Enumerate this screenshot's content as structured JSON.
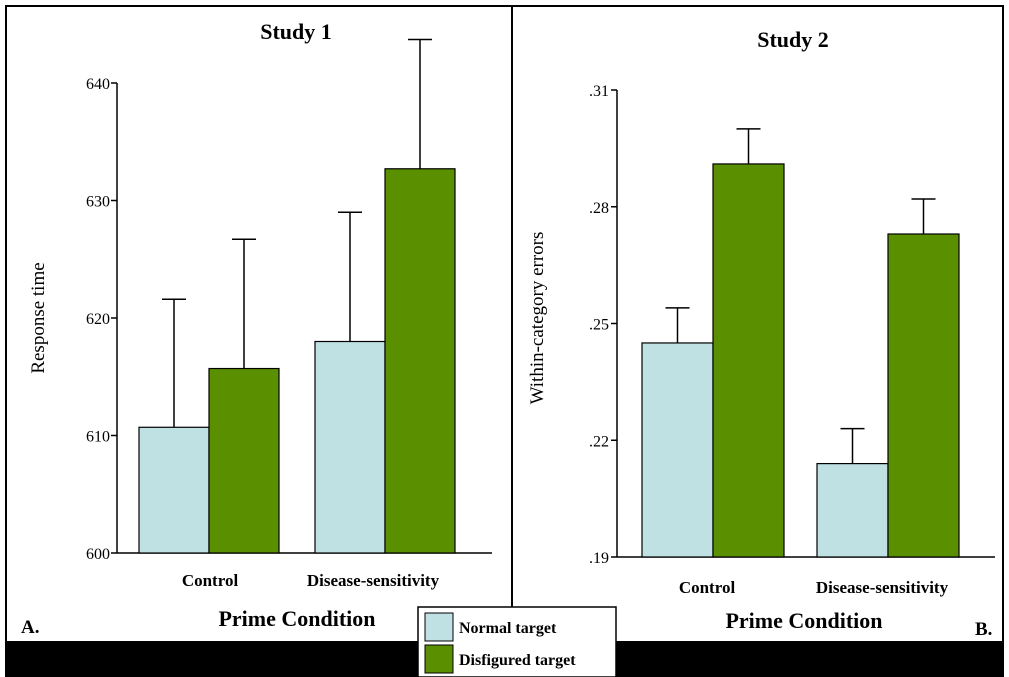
{
  "colors": {
    "normal": "#bfe1e4",
    "disfigured": "#5a9000",
    "frame": "#000000"
  },
  "legend": {
    "items": [
      "Normal target",
      "Disfigured target"
    ]
  },
  "chart_data": [
    {
      "type": "bar",
      "panel_label": "A.",
      "title": "Study 1",
      "xlabel": "Prime Condition",
      "ylabel": "Response time",
      "ylim": [
        600,
        640
      ],
      "yticks": [
        600,
        610,
        620,
        630,
        640
      ],
      "ytick_labels": [
        "600",
        "610",
        "620",
        "630",
        "640"
      ],
      "categories": [
        "Control",
        "Disease-sensitivity"
      ],
      "series": [
        {
          "name": "Normal target",
          "values": [
            610.7,
            618.0
          ],
          "errors": [
            10.9,
            11.0
          ]
        },
        {
          "name": "Disfigured target",
          "values": [
            615.7,
            632.7
          ],
          "errors": [
            11.0,
            11.0
          ]
        }
      ]
    },
    {
      "type": "bar",
      "panel_label": "B.",
      "title": "Study 2",
      "xlabel": "Prime Condition",
      "ylabel": "Within-category errors",
      "ylim": [
        0.19,
        0.31
      ],
      "yticks": [
        0.19,
        0.22,
        0.25,
        0.28,
        0.31
      ],
      "ytick_labels": [
        ".19",
        ".22",
        ".25",
        ".28",
        ".31"
      ],
      "categories": [
        "Control",
        "Disease-sensitivity"
      ],
      "series": [
        {
          "name": "Normal target",
          "values": [
            0.245,
            0.214
          ],
          "errors": [
            0.009,
            0.009
          ]
        },
        {
          "name": "Disfigured target",
          "values": [
            0.291,
            0.273
          ],
          "errors": [
            0.009,
            0.009
          ]
        }
      ]
    }
  ]
}
